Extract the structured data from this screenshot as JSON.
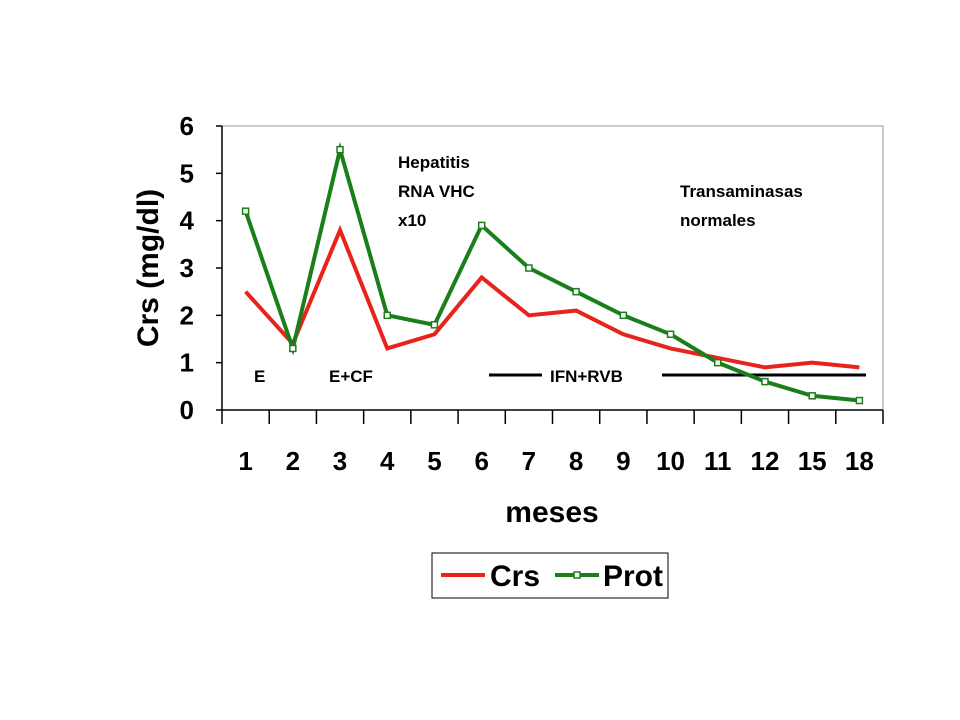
{
  "chart_data": {
    "type": "line",
    "categories": [
      "1",
      "2",
      "3",
      "4",
      "5",
      "6",
      "7",
      "8",
      "9",
      "10",
      "11",
      "12",
      "15",
      "18"
    ],
    "xlabel": "meses",
    "ylabel": "Crs (mg/dl)",
    "ylim": [
      0,
      6
    ],
    "yticks": [
      "0",
      "1",
      "2",
      "3",
      "4",
      "5",
      "6"
    ],
    "grid": false,
    "legend_position": "bottom",
    "series": [
      {
        "name": "Crs",
        "color": "#e8231c",
        "marker": "none",
        "values": [
          2.5,
          1.4,
          3.8,
          1.3,
          1.6,
          2.8,
          2.0,
          2.1,
          1.6,
          1.3,
          1.1,
          0.9,
          1.0,
          0.9
        ]
      },
      {
        "name": "Prot",
        "color": "#1a7f1a",
        "marker": "square",
        "values": [
          4.2,
          1.3,
          5.5,
          2.0,
          1.8,
          3.9,
          3.0,
          2.5,
          2.0,
          1.6,
          1.0,
          0.6,
          0.3,
          0.2
        ]
      }
    ],
    "annotations": {
      "hepatitis_1": "Hepatitis",
      "hepatitis_2": "RNA VHC",
      "hepatitis_3": "x10",
      "transaminasas_1": "Transaminasas",
      "transaminasas_2": "normales",
      "phase_e": "E",
      "phase_ecf": "E+CF",
      "phase_ifn": "IFN+RVB"
    }
  }
}
